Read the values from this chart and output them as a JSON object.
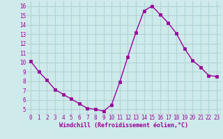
{
  "x": [
    0,
    1,
    2,
    3,
    4,
    5,
    6,
    7,
    8,
    9,
    10,
    11,
    12,
    13,
    14,
    15,
    16,
    17,
    18,
    19,
    20,
    21,
    22,
    23
  ],
  "y": [
    10.1,
    9.0,
    8.1,
    7.1,
    6.6,
    6.1,
    5.6,
    5.1,
    5.0,
    4.8,
    5.5,
    7.9,
    10.6,
    13.2,
    15.5,
    16.0,
    15.1,
    14.2,
    13.1,
    11.5,
    10.2,
    9.5,
    8.6,
    8.5
  ],
  "line_color": "#990099",
  "marker": "s",
  "marker_size": 2.5,
  "bg_color": "#ceeaea",
  "grid_color": "#b0d4d4",
  "xlabel": "Windchill (Refroidissement éolien,°C)",
  "xlabel_color": "#990099",
  "tick_color": "#990099",
  "ylim": [
    4.5,
    16.5
  ],
  "xlim": [
    -0.5,
    23.5
  ],
  "yticks": [
    5,
    6,
    7,
    8,
    9,
    10,
    11,
    12,
    13,
    14,
    15,
    16
  ],
  "xticks": [
    0,
    1,
    2,
    3,
    4,
    5,
    6,
    7,
    8,
    9,
    10,
    11,
    12,
    13,
    14,
    15,
    16,
    17,
    18,
    19,
    20,
    21,
    22,
    23
  ],
  "tick_fontsize": 5.5,
  "xlabel_fontsize": 6.0,
  "linewidth": 1.0
}
